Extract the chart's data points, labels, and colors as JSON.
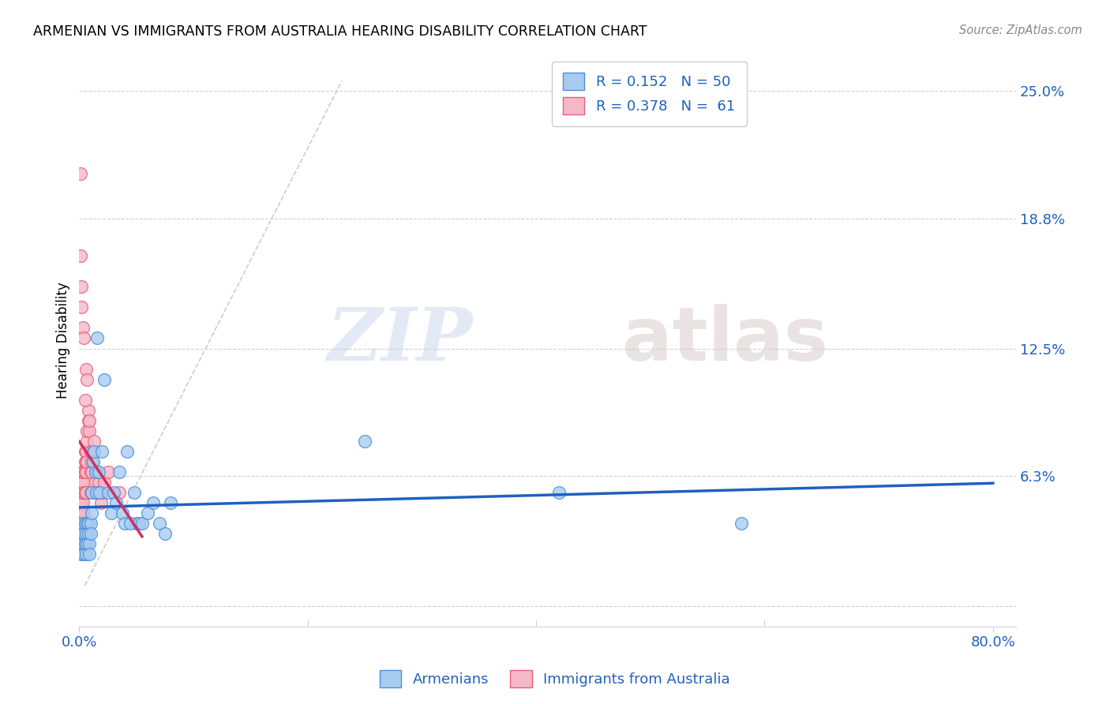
{
  "title": "ARMENIAN VS IMMIGRANTS FROM AUSTRALIA HEARING DISABILITY CORRELATION CHART",
  "source": "Source: ZipAtlas.com",
  "ylabel": "Hearing Disability",
  "ytick_vals": [
    0.0,
    0.063,
    0.125,
    0.188,
    0.25
  ],
  "ytick_labels": [
    "",
    "6.3%",
    "12.5%",
    "18.8%",
    "25.0%"
  ],
  "xtick_vals": [
    0.0,
    0.8
  ],
  "xtick_labels": [
    "0.0%",
    "80.0%"
  ],
  "watermark_zip": "ZIP",
  "watermark_atlas": "atlas",
  "legend_blue_R": "R = 0.152",
  "legend_blue_N": "N = 50",
  "legend_pink_R": "R = 0.378",
  "legend_pink_N": "N =  61",
  "blue_fill": "#a8ccf0",
  "pink_fill": "#f5b8c8",
  "blue_edge": "#4a90d9",
  "pink_edge": "#e8607a",
  "blue_line_color": "#2060c0",
  "pink_line_color": "#d03060",
  "diag_line_color": "#c0c0c0",
  "xmin": 0.0,
  "xmax": 0.82,
  "ymin": -0.01,
  "ymax": 0.268,
  "blue_scatter_x": [
    0.001,
    0.002,
    0.002,
    0.003,
    0.003,
    0.004,
    0.004,
    0.005,
    0.005,
    0.006,
    0.006,
    0.007,
    0.007,
    0.008,
    0.008,
    0.009,
    0.009,
    0.01,
    0.01,
    0.011,
    0.011,
    0.012,
    0.013,
    0.014,
    0.015,
    0.016,
    0.017,
    0.018,
    0.02,
    0.022,
    0.025,
    0.028,
    0.03,
    0.032,
    0.035,
    0.038,
    0.04,
    0.042,
    0.045,
    0.048,
    0.052,
    0.055,
    0.06,
    0.065,
    0.07,
    0.075,
    0.08,
    0.25,
    0.42,
    0.58
  ],
  "blue_scatter_y": [
    0.03,
    0.035,
    0.025,
    0.04,
    0.03,
    0.035,
    0.025,
    0.04,
    0.03,
    0.035,
    0.025,
    0.04,
    0.03,
    0.04,
    0.035,
    0.03,
    0.025,
    0.04,
    0.035,
    0.055,
    0.045,
    0.07,
    0.075,
    0.065,
    0.055,
    0.13,
    0.065,
    0.055,
    0.075,
    0.11,
    0.055,
    0.045,
    0.055,
    0.05,
    0.065,
    0.045,
    0.04,
    0.075,
    0.04,
    0.055,
    0.04,
    0.04,
    0.045,
    0.05,
    0.04,
    0.035,
    0.05,
    0.08,
    0.055,
    0.04
  ],
  "pink_scatter_x": [
    0.001,
    0.001,
    0.001,
    0.001,
    0.001,
    0.001,
    0.002,
    0.002,
    0.002,
    0.002,
    0.002,
    0.003,
    0.003,
    0.003,
    0.003,
    0.003,
    0.004,
    0.004,
    0.004,
    0.005,
    0.005,
    0.005,
    0.005,
    0.006,
    0.006,
    0.006,
    0.006,
    0.007,
    0.007,
    0.007,
    0.008,
    0.008,
    0.009,
    0.009,
    0.01,
    0.01,
    0.01,
    0.011,
    0.011,
    0.012,
    0.013,
    0.014,
    0.015,
    0.016,
    0.017,
    0.018,
    0.019,
    0.02,
    0.022,
    0.025,
    0.001,
    0.001,
    0.002,
    0.002,
    0.003,
    0.004,
    0.005,
    0.006,
    0.007,
    0.035,
    0.05
  ],
  "pink_scatter_y": [
    0.03,
    0.04,
    0.045,
    0.05,
    0.055,
    0.06,
    0.03,
    0.04,
    0.045,
    0.055,
    0.065,
    0.04,
    0.05,
    0.055,
    0.06,
    0.065,
    0.045,
    0.055,
    0.065,
    0.055,
    0.065,
    0.07,
    0.075,
    0.055,
    0.065,
    0.07,
    0.075,
    0.07,
    0.08,
    0.085,
    0.09,
    0.095,
    0.085,
    0.09,
    0.065,
    0.055,
    0.075,
    0.065,
    0.07,
    0.075,
    0.08,
    0.06,
    0.055,
    0.065,
    0.06,
    0.055,
    0.05,
    0.055,
    0.06,
    0.065,
    0.21,
    0.17,
    0.155,
    0.145,
    0.135,
    0.13,
    0.1,
    0.115,
    0.11,
    0.055,
    0.04
  ],
  "background_color": "#ffffff",
  "grid_color": "#d0d0d0"
}
